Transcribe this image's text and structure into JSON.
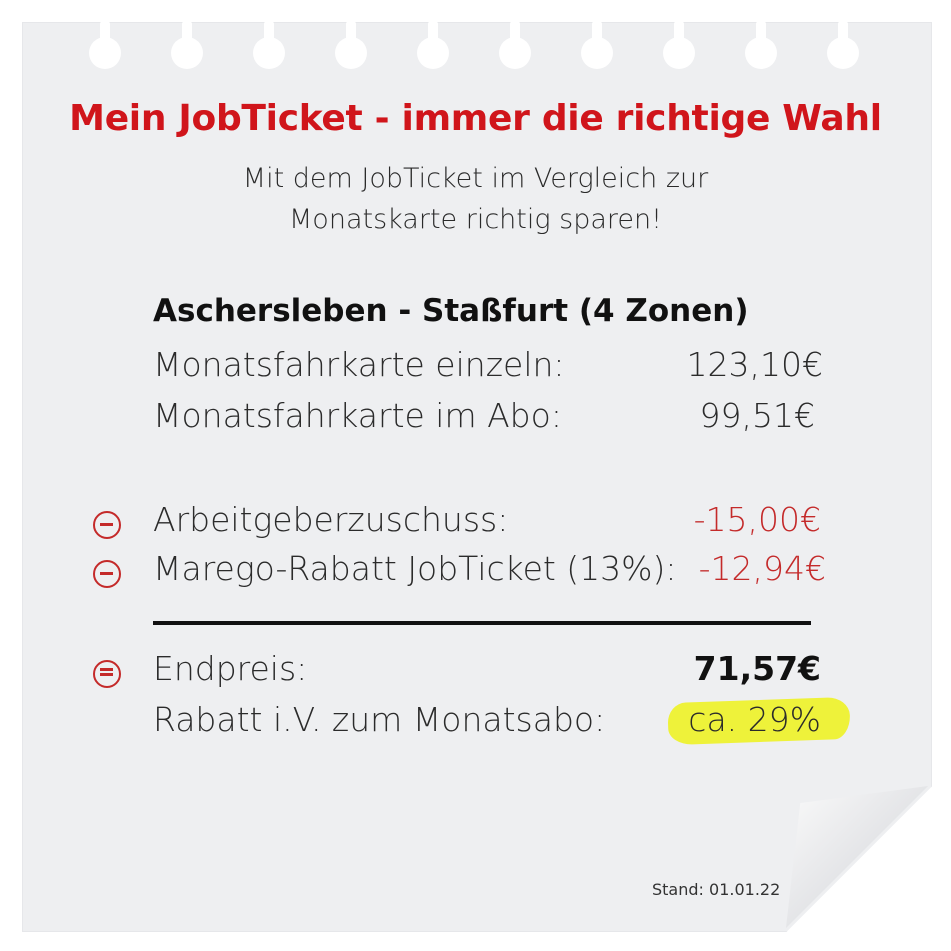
{
  "title": "Mein JobTicket - immer die richtige Wahl",
  "subtitle_line1": "Mit dem JobTicket im Vergleich zur",
  "subtitle_line2": "Monatskarte richtig sparen!",
  "route": "Aschersleben - Staßfurt  (4 Zonen)",
  "rows": [
    {
      "label": "Monatsfahrkarte einzeln:",
      "value": "123,10€"
    },
    {
      "label": "Monatsfahrkarte im Abo:",
      "value": "99,51€"
    },
    {
      "label": "Arbeitgeberzuschuss:",
      "value": "-15,00€"
    },
    {
      "label": "Marego-Rabatt JobTicket (13%):",
      "value": "-12,94€"
    },
    {
      "label": "Endpreis:",
      "value": "71,57€"
    },
    {
      "label": "Rabatt i.V. zum Monatsabo:",
      "value": "ca. 29%"
    }
  ],
  "stand": "Stand: 01.01.22",
  "colors": {
    "title": "#d0151b",
    "deduction": "#c42a2a",
    "highlight": "#eef23a",
    "paper": "#eeeff1"
  },
  "icons": {
    "minus": "minus-circle-icon",
    "equals": "equals-circle-icon"
  }
}
